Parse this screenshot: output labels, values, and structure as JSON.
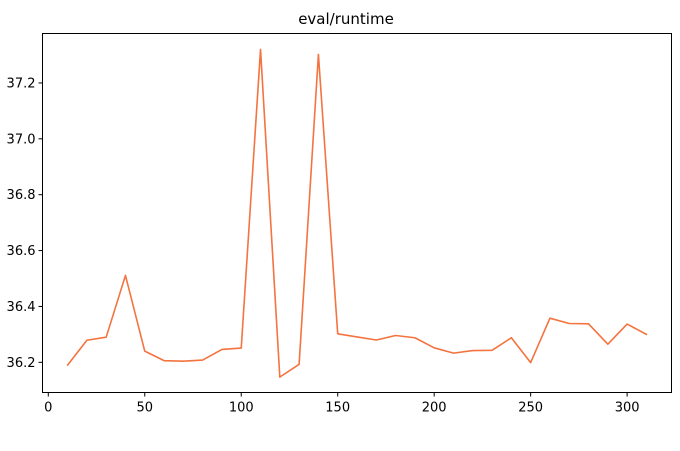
{
  "chart_data": {
    "type": "line",
    "title": "eval/runtime",
    "xlabel": "",
    "ylabel": "",
    "xlim": [
      -3,
      323
    ],
    "ylim": [
      36.092,
      37.377
    ],
    "x_ticks": [
      0,
      50,
      100,
      150,
      200,
      250,
      300
    ],
    "y_ticks": [
      36.2,
      36.4,
      36.6,
      36.8,
      37.0,
      37.2
    ],
    "x_tick_labels": [
      "0",
      "50",
      "100",
      "150",
      "200",
      "250",
      "300"
    ],
    "y_tick_labels": [
      "36.2",
      "36.4",
      "36.6",
      "36.8",
      "37.0",
      "37.2"
    ],
    "grid": false,
    "legend": "none",
    "colors": {
      "line": "#f4733f"
    },
    "series": [
      {
        "x": [
          10,
          20,
          30,
          40,
          50,
          60,
          70,
          80,
          90,
          100,
          110,
          120,
          130,
          140,
          150,
          160,
          170,
          180,
          190,
          200,
          210,
          220,
          230,
          240,
          250,
          260,
          270,
          280,
          290,
          300,
          310
        ],
        "values": [
          36.19,
          36.279,
          36.29,
          36.511,
          36.24,
          36.206,
          36.204,
          36.208,
          36.246,
          36.251,
          37.32,
          36.147,
          36.193,
          37.302,
          36.302,
          36.291,
          36.28,
          36.296,
          36.288,
          36.252,
          36.233,
          36.242,
          36.243,
          36.288,
          36.199,
          36.358,
          36.339,
          36.338,
          36.265,
          36.337,
          36.3
        ]
      }
    ]
  }
}
